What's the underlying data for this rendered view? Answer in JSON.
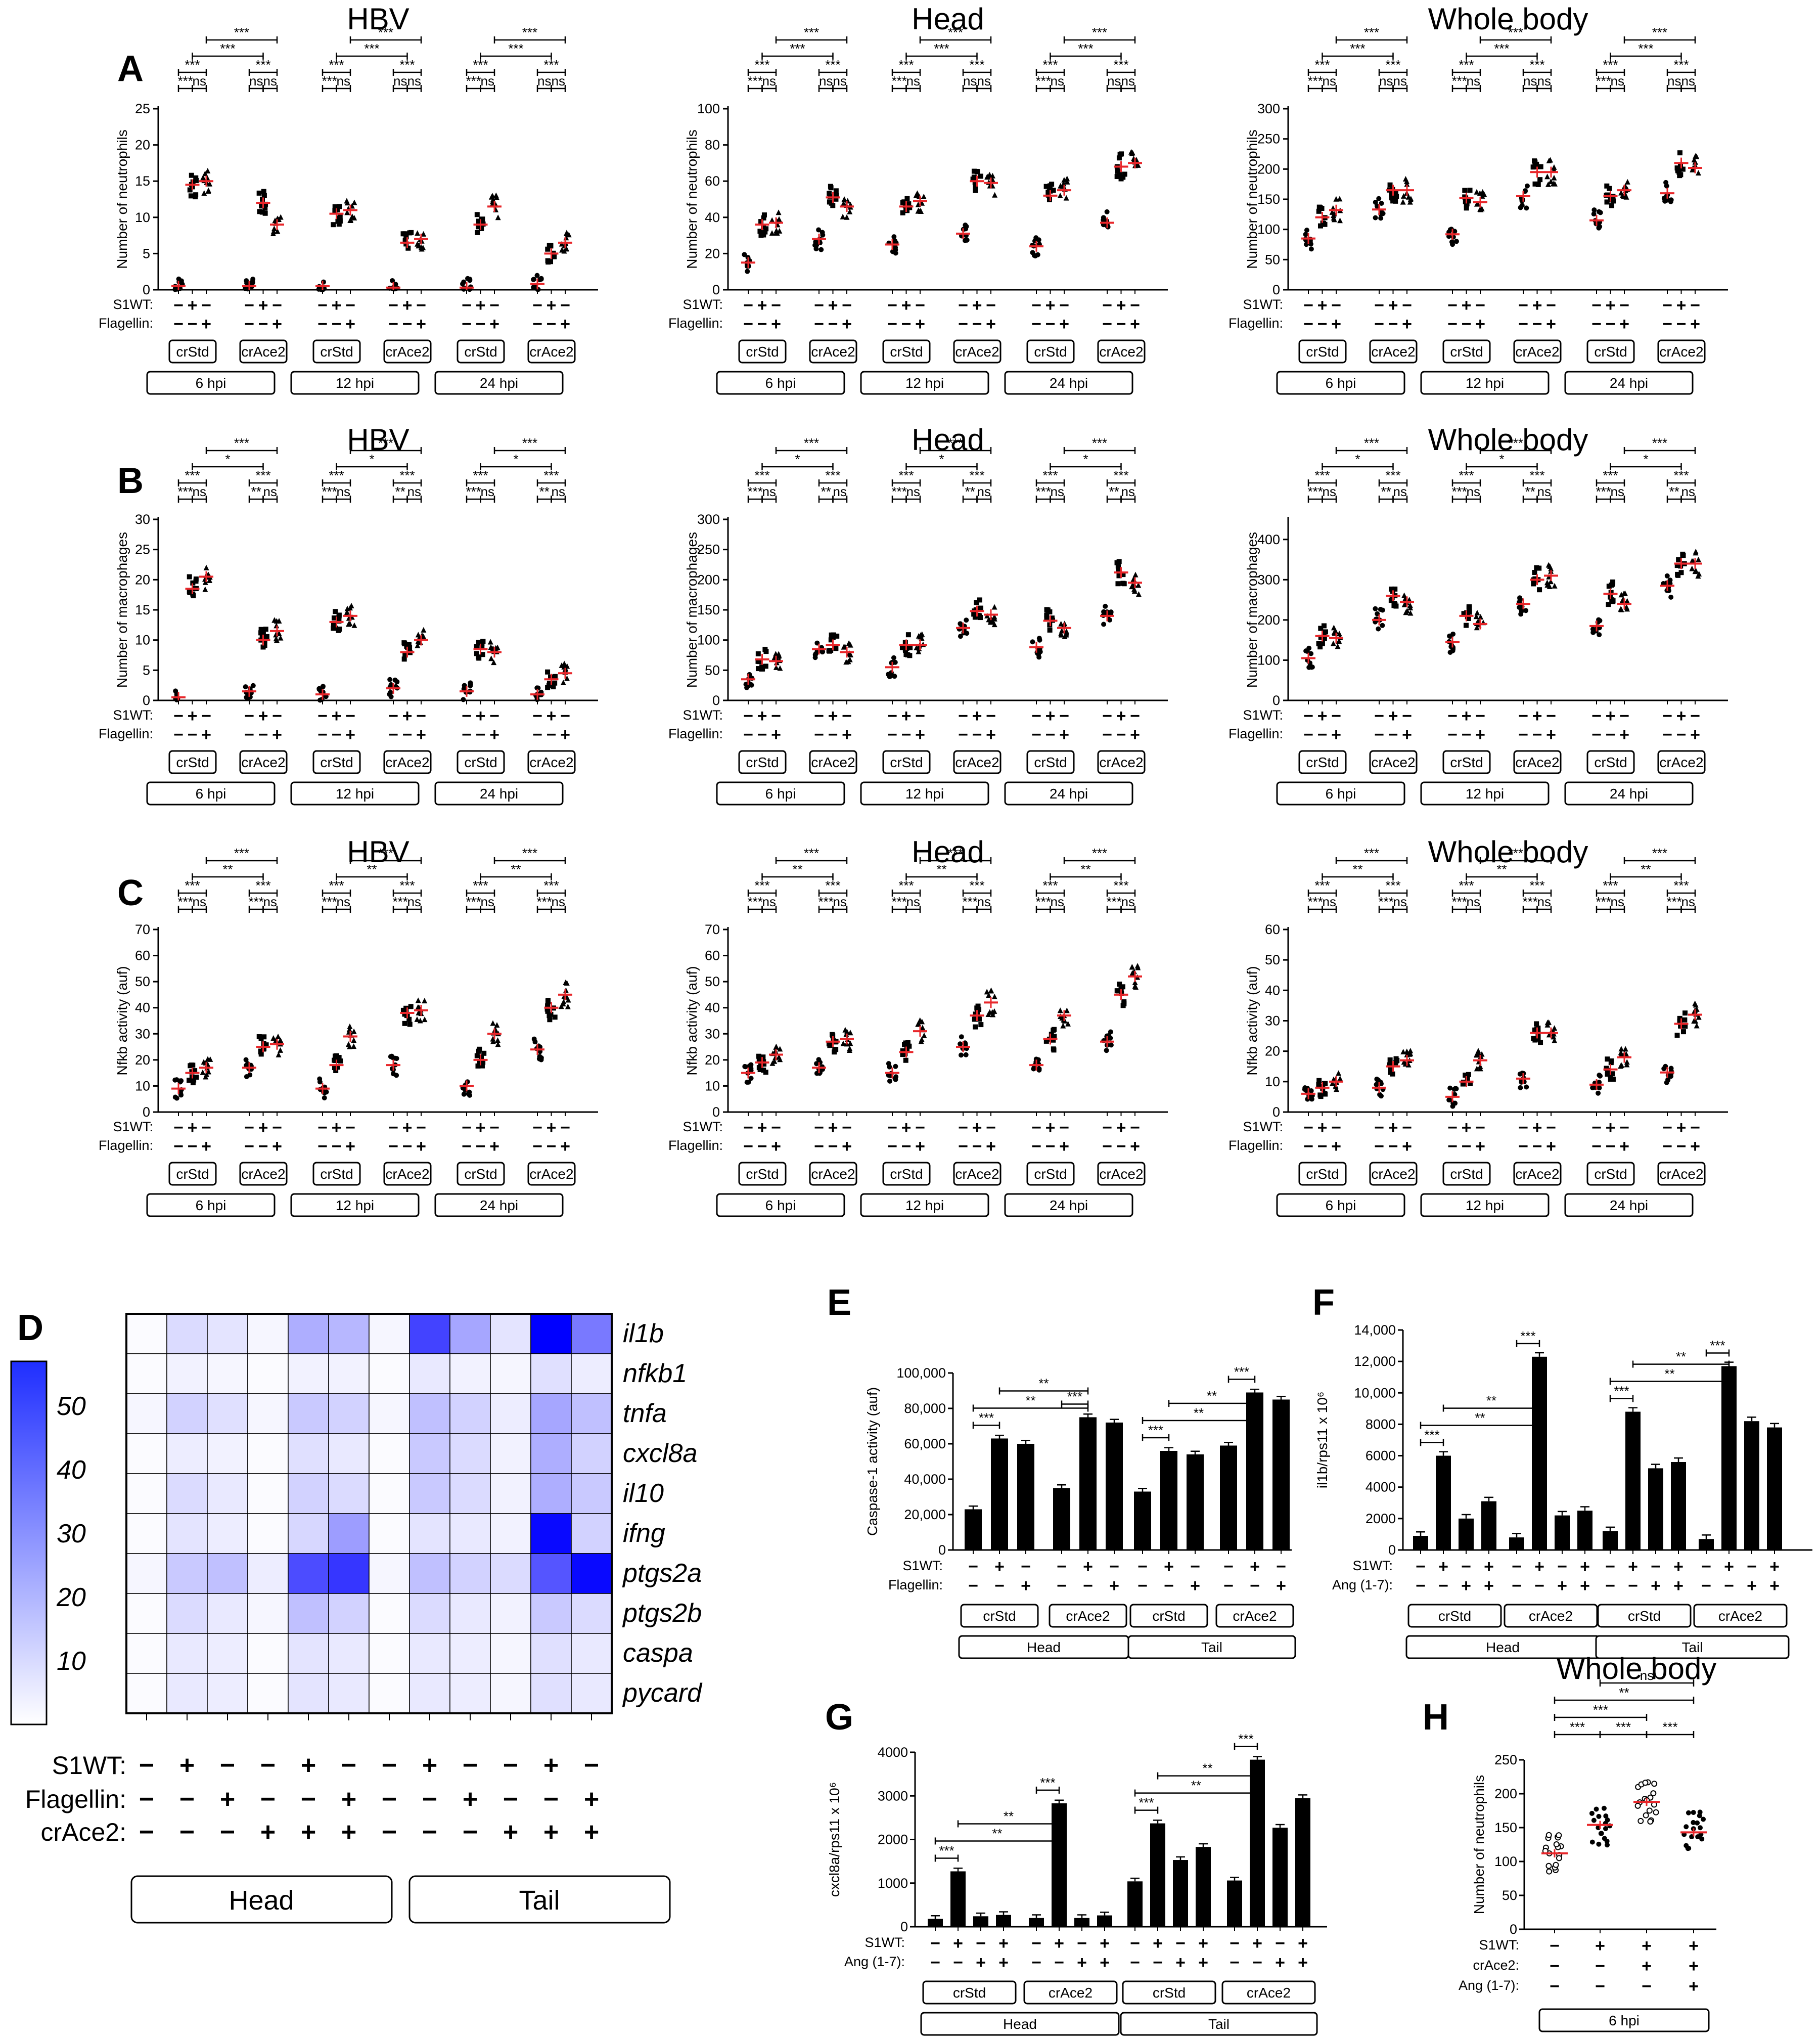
{
  "figure": {
    "row_titles": [
      "HBV",
      "Head",
      "Whole body"
    ],
    "row_letters": [
      "A",
      "B",
      "C"
    ],
    "ylabels": [
      "Number of neutrophils",
      "Number of macrophages",
      "Nfkb activity (auf)"
    ],
    "treat_labels": [
      "S1WT:",
      "Flagellin:"
    ],
    "s1wt_signs": [
      "−",
      "+",
      "−",
      "−",
      "+",
      "−",
      "−",
      "+",
      "−",
      "−",
      "+",
      "−",
      "−",
      "+",
      "−",
      "−",
      "+",
      "−"
    ],
    "flag_signs": [
      "−",
      "−",
      "+",
      "−",
      "−",
      "+",
      "−",
      "−",
      "+",
      "−",
      "−",
      "+",
      "−",
      "−",
      "+",
      "−",
      "−",
      "+"
    ],
    "group_labels": [
      "crStd",
      "crAce2",
      "crStd",
      "crAce2",
      "crStd",
      "crAce2"
    ],
    "time_labels": [
      "6 hpi",
      "12 hpi",
      "24 hpi"
    ]
  },
  "heatmap": {
    "letter": "D",
    "genes": [
      "il1b",
      "nfkb1",
      "tnfa",
      "cxcl8a",
      "il10",
      "ifng",
      "ptgs2a",
      "ptgs2b",
      "caspa",
      "pycard"
    ],
    "scale_ticks": [
      "50",
      "40",
      "30",
      "20",
      "10"
    ],
    "row_labels": [
      "S1WT:",
      "Flagellin:",
      "crAce2:"
    ],
    "s1wt": [
      "−",
      "+",
      "−",
      "−",
      "+",
      "−",
      "−",
      "+",
      "−",
      "−",
      "+",
      "−"
    ],
    "flagellin": [
      "−",
      "−",
      "+",
      "−",
      "−",
      "+",
      "−",
      "−",
      "+",
      "−",
      "−",
      "+"
    ],
    "crace2": [
      "−",
      "−",
      "−",
      "+",
      "+",
      "+",
      "−",
      "−",
      "−",
      "+",
      "+",
      "+"
    ],
    "group_labels": [
      "Head",
      "Tail"
    ]
  },
  "bars": {
    "E": {
      "letter": "E",
      "ylabel": "Caspase-1 activity (auf)",
      "yticks": [
        "0",
        "20,000",
        "40,000",
        "60,000",
        "80,000",
        "100,000"
      ],
      "row_labels": [
        "S1WT:",
        "Flagellin:"
      ],
      "row1": [
        "−",
        "+",
        "−",
        "−",
        "+",
        "−",
        "−",
        "+",
        "−",
        "−",
        "+",
        "−"
      ],
      "row2": [
        "−",
        "−",
        "+",
        "−",
        "−",
        "+",
        "−",
        "−",
        "+",
        "−",
        "−",
        "+"
      ],
      "group_labels": [
        "crStd",
        "crAce2",
        "crStd",
        "crAce2"
      ],
      "tissue_labels": [
        "Head",
        "Tail"
      ]
    },
    "F": {
      "letter": "F",
      "ylabel": "il1b/rps11 x 10⁶",
      "yticks": [
        "0",
        "2000",
        "4000",
        "6000",
        "8000",
        "10,000",
        "12,000",
        "14,000"
      ],
      "row_labels": [
        "S1WT:",
        "Ang (1-7):"
      ],
      "row1": [
        "−",
        "+",
        "−",
        "+",
        "−",
        "+",
        "−",
        "+",
        "−",
        "+",
        "−",
        "+",
        "−",
        "+",
        "−",
        "+"
      ],
      "row2": [
        "−",
        "−",
        "+",
        "+",
        "−",
        "−",
        "+",
        "+",
        "−",
        "−",
        "+",
        "+",
        "−",
        "−",
        "+",
        "+"
      ],
      "group_labels": [
        "crStd",
        "crAce2",
        "crStd",
        "crAce2"
      ],
      "tissue_labels": [
        "Head",
        "Tail"
      ]
    },
    "G": {
      "letter": "G",
      "ylabel": "cxcl8a/rps11 x 10⁶",
      "yticks": [
        "0",
        "1000",
        "2000",
        "3000",
        "4000"
      ],
      "row_labels": [
        "S1WT:",
        "Ang (1-7):"
      ],
      "row1": [
        "−",
        "+",
        "−",
        "+",
        "−",
        "+",
        "−",
        "+",
        "−",
        "+",
        "−",
        "+",
        "−",
        "+",
        "−",
        "+"
      ],
      "row2": [
        "−",
        "−",
        "+",
        "+",
        "−",
        "−",
        "+",
        "+",
        "−",
        "−",
        "+",
        "+",
        "−",
        "−",
        "+",
        "+"
      ],
      "group_labels": [
        "crStd",
        "crAce2",
        "crStd",
        "crAce2"
      ],
      "tissue_labels": [
        "Head",
        "Tail"
      ]
    }
  },
  "panelH": {
    "letter": "H",
    "title": "Whole body",
    "ylabel": "Number of neutrophils",
    "yticks": [
      "0",
      "50",
      "100",
      "150",
      "200",
      "250"
    ],
    "row_labels": [
      "S1WT:",
      "crAce2:",
      "Ang (1-7):"
    ],
    "s1wt": [
      "−",
      "+",
      "+",
      "+"
    ],
    "crace2": [
      "−",
      "−",
      "+",
      "+"
    ],
    "ang": [
      "−",
      "−",
      "−",
      "+"
    ],
    "time_label": "6 hpi",
    "sig_labels": [
      "ns",
      "**",
      "***",
      "***",
      "***",
      "***"
    ]
  },
  "chart_data": [
    {
      "type": "scatter",
      "panel": "A",
      "title": "HBV",
      "ylabel": "Number of neutrophils",
      "ylim": [
        0,
        25
      ],
      "yticks": [
        0,
        5,
        10,
        15,
        20,
        25
      ],
      "means": [
        0.5,
        14.5,
        15,
        0.5,
        12,
        9,
        0.5,
        10.5,
        11,
        0.3,
        6.5,
        7,
        0.3,
        9,
        11.5,
        0.8,
        5,
        6.5
      ]
    },
    {
      "type": "scatter",
      "panel": "A",
      "title": "Head",
      "ylabel": "Number of neutrophils",
      "ylim": [
        0,
        100
      ],
      "yticks": [
        0,
        20,
        40,
        60,
        80,
        100
      ],
      "means": [
        15,
        36,
        37,
        28,
        51,
        46,
        25,
        46,
        49,
        31,
        60,
        59,
        24,
        52,
        55,
        37,
        68,
        70
      ]
    },
    {
      "type": "scatter",
      "panel": "A",
      "title": "Whole body",
      "ylabel": "Number of neutrophils",
      "ylim": [
        0,
        300
      ],
      "yticks": [
        0,
        50,
        100,
        150,
        200,
        250,
        300
      ],
      "means": [
        85,
        120,
        132,
        133,
        165,
        165,
        92,
        152,
        145,
        155,
        195,
        195,
        115,
        155,
        165,
        160,
        210,
        202
      ]
    },
    {
      "type": "scatter",
      "panel": "B",
      "title": "HBV",
      "ylabel": "Number of macrophages",
      "ylim": [
        0,
        30
      ],
      "yticks": [
        0,
        5,
        10,
        15,
        20,
        25,
        30
      ],
      "means": [
        0.5,
        18.5,
        20.5,
        1.5,
        10,
        11.5,
        1,
        13,
        14,
        2,
        8,
        10,
        1.5,
        8.5,
        8,
        1,
        3.5,
        4.5
      ]
    },
    {
      "type": "scatter",
      "panel": "B",
      "title": "Head",
      "ylabel": "Number of macrophages",
      "ylim": [
        0,
        300
      ],
      "yticks": [
        0,
        50,
        100,
        150,
        200,
        250,
        300
      ],
      "means": [
        35,
        68,
        65,
        85,
        92,
        80,
        55,
        92,
        92,
        120,
        148,
        142,
        88,
        132,
        120,
        140,
        212,
        195
      ]
    },
    {
      "type": "scatter",
      "panel": "B",
      "title": "Whole body",
      "ylabel": "Number of macrophages",
      "ylim": [
        0,
        450
      ],
      "yticks": [
        0,
        100,
        200,
        300,
        400
      ],
      "means": [
        105,
        160,
        155,
        200,
        260,
        245,
        145,
        210,
        190,
        240,
        300,
        310,
        185,
        265,
        240,
        285,
        340,
        340
      ]
    },
    {
      "type": "scatter",
      "panel": "C",
      "title": "HBV",
      "ylabel": "Nfkb activity (auf)",
      "ylim": [
        0,
        70
      ],
      "yticks": [
        0,
        10,
        20,
        30,
        40,
        50,
        60,
        70
      ],
      "means": [
        9,
        15,
        17,
        17,
        25,
        26,
        9,
        18,
        29,
        18,
        38,
        39,
        10,
        20,
        30,
        24,
        40,
        45
      ]
    },
    {
      "type": "scatter",
      "panel": "C",
      "title": "Head",
      "ylabel": "Nfkb activity (auf)",
      "ylim": [
        0,
        70
      ],
      "yticks": [
        0,
        10,
        20,
        30,
        40,
        50,
        60,
        70
      ],
      "means": [
        15,
        19,
        22,
        17,
        27,
        28,
        15,
        23,
        31,
        25,
        37,
        42,
        18,
        28,
        37,
        27,
        45,
        52
      ]
    },
    {
      "type": "scatter",
      "panel": "C",
      "title": "Whole body",
      "ylabel": "Nfkb activity (auf)",
      "ylim": [
        0,
        60
      ],
      "yticks": [
        0,
        10,
        20,
        30,
        40,
        50,
        60
      ],
      "means": [
        6,
        8,
        10,
        8,
        15,
        17,
        5,
        10,
        17,
        11,
        26,
        26,
        9,
        14,
        18,
        13,
        29,
        32
      ]
    },
    {
      "type": "heatmap",
      "panel": "D",
      "rows": [
        "il1b",
        "nfkb1",
        "tnfa",
        "cxcl8a",
        "il10",
        "ifng",
        "ptgs2a",
        "ptgs2b",
        "caspa",
        "pycard"
      ],
      "values": [
        [
          1,
          8,
          6,
          2,
          18,
          16,
          2,
          42,
          20,
          6,
          57,
          30
        ],
        [
          1,
          3,
          2,
          1,
          3,
          3,
          1,
          5,
          3,
          2,
          7,
          4
        ],
        [
          2,
          10,
          7,
          2,
          12,
          10,
          2,
          14,
          10,
          4,
          20,
          14
        ],
        [
          1,
          4,
          3,
          1,
          7,
          5,
          1,
          12,
          8,
          3,
          18,
          10
        ],
        [
          1,
          8,
          5,
          1,
          10,
          8,
          1,
          12,
          8,
          3,
          18,
          12
        ],
        [
          1,
          6,
          4,
          1,
          9,
          22,
          1,
          6,
          5,
          3,
          55,
          10
        ],
        [
          2,
          12,
          14,
          4,
          40,
          45,
          2,
          14,
          10,
          8,
          38,
          55
        ],
        [
          1,
          8,
          5,
          2,
          14,
          10,
          1,
          8,
          5,
          3,
          12,
          8
        ],
        [
          1,
          5,
          4,
          1,
          6,
          5,
          1,
          5,
          4,
          2,
          7,
          5
        ],
        [
          1,
          5,
          4,
          1,
          6,
          5,
          1,
          5,
          4,
          2,
          7,
          5
        ]
      ],
      "scale_range": [
        0,
        57
      ]
    },
    {
      "type": "bar",
      "panel": "E",
      "ylabel": "Caspase-1 activity (auf)",
      "ylim": [
        0,
        100000
      ],
      "values": [
        23000,
        63000,
        60000,
        35000,
        75000,
        72000,
        33000,
        56000,
        54000,
        59000,
        89000,
        85000
      ]
    },
    {
      "type": "bar",
      "panel": "F",
      "ylim": [
        0,
        14000
      ],
      "values": [
        900,
        6000,
        2000,
        3100,
        800,
        12300,
        2200,
        2500,
        1200,
        8800,
        5200,
        5600,
        700,
        11700,
        8200,
        7800
      ]
    },
    {
      "type": "bar",
      "panel": "G",
      "ylim": [
        0,
        4000
      ],
      "values": [
        180,
        1270,
        240,
        270,
        200,
        2830,
        200,
        260,
        1040,
        2370,
        1530,
        1830,
        1060,
        3830,
        2270,
        2950
      ]
    },
    {
      "type": "scatter",
      "panel": "H",
      "title": "Whole body",
      "ylabel": "Number of neutrophils",
      "ylim": [
        0,
        250
      ],
      "means": [
        112,
        154,
        188,
        143
      ]
    }
  ]
}
